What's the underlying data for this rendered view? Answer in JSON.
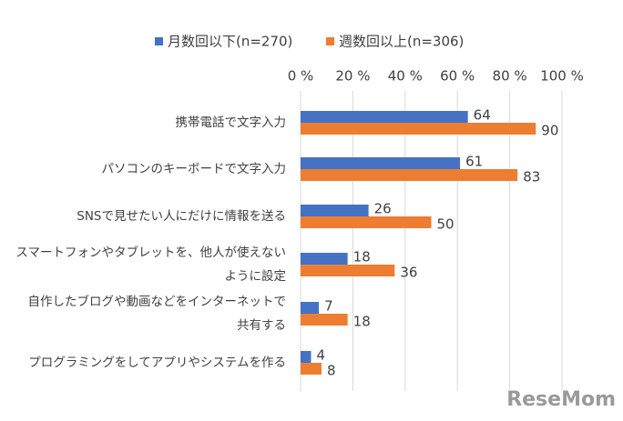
{
  "chart_data": {
    "type": "hbar",
    "categories": [
      "携帯電話で文字入力",
      "パソコンのキーボードで文字入力",
      "SNSで見せたい人にだけに情報を送る",
      "スマートフォンやタブレットを、他人が使えない\nように設定",
      "自作したブログや動画などをインターネットで\n共有する",
      "プログラミングをしてアプリやシステムを作る"
    ],
    "series": [
      {
        "name": "月数回以下(n=270)",
        "color": "#4472c4",
        "values": [
          64,
          61,
          26,
          18,
          7,
          4
        ]
      },
      {
        "name": "週数回以上(n=306)",
        "color": "#ed7d31",
        "values": [
          90,
          83,
          50,
          36,
          18,
          8
        ]
      }
    ],
    "xlim": [
      0,
      100
    ],
    "xticks": [
      {
        "value": 0,
        "label": "0 %"
      },
      {
        "value": 20,
        "label": "20 %"
      },
      {
        "value": 40,
        "label": "40 %"
      },
      {
        "value": 60,
        "label": "60 %"
      },
      {
        "value": 80,
        "label": "80 %"
      },
      {
        "value": 100,
        "label": "100 %"
      }
    ],
    "grid": true
  },
  "watermark": "ReseMom"
}
